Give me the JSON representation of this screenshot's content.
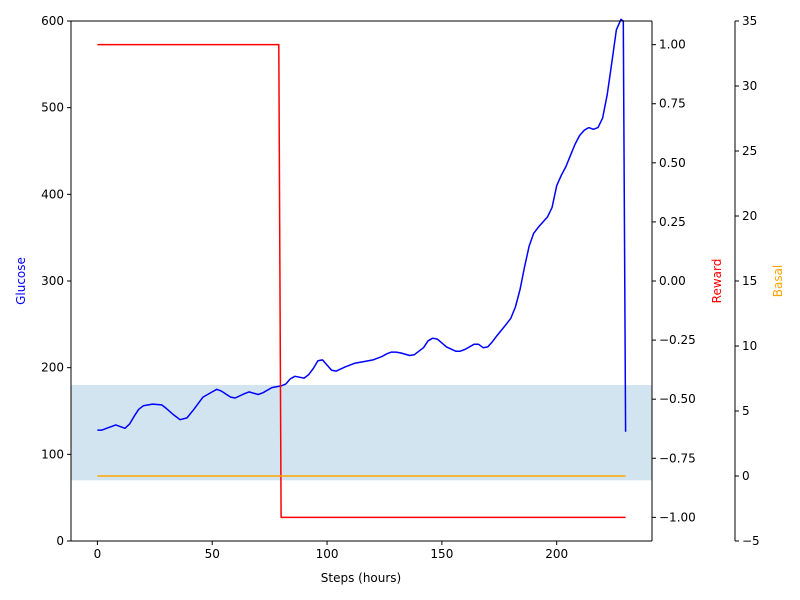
{
  "chart_data": {
    "type": "line",
    "xlabel": "Steps (hours)",
    "xlim": [
      -11.5,
      241.5
    ],
    "xticks": [
      0,
      50,
      100,
      150,
      200
    ],
    "axes": {
      "glucose": {
        "label": "Glucose",
        "color": "#0000ff",
        "ylim": [
          0,
          600
        ],
        "ticks": [
          0,
          100,
          200,
          300,
          400,
          500,
          600
        ]
      },
      "reward": {
        "label": "Reward",
        "color": "#ff0000",
        "ylim": [
          -1.1,
          1.1
        ],
        "ticks": [
          "-1.00",
          "-0.75",
          "-0.50",
          "-0.25",
          "0.00",
          "0.25",
          "0.50",
          "0.75",
          "1.00"
        ]
      },
      "basal": {
        "label": "Basal",
        "color": "#ffa500",
        "ylim": [
          -5,
          35
        ],
        "ticks": [
          -5,
          0,
          5,
          10,
          15,
          20,
          25,
          30,
          35
        ]
      }
    },
    "target_range": {
      "axis": "glucose",
      "low": 70,
      "high": 180,
      "color": "#1f77b4",
      "opacity": 0.2
    },
    "series": [
      {
        "axis": "glucose",
        "color": "#0000ff",
        "x": [
          0,
          2,
          4,
          8,
          12,
          14,
          16,
          18,
          20,
          24,
          28,
          30,
          33,
          36,
          39,
          42,
          46,
          48,
          50,
          52,
          54,
          58,
          60,
          64,
          66,
          70,
          72,
          76,
          80,
          82,
          84,
          86,
          90,
          92,
          94,
          96,
          98,
          100,
          102,
          104,
          108,
          112,
          116,
          120,
          124,
          126,
          128,
          130,
          132,
          136,
          138,
          142,
          144,
          146,
          148,
          152,
          156,
          158,
          160,
          164,
          166,
          168,
          170,
          172,
          174,
          178,
          180,
          182,
          184,
          186,
          188,
          190,
          192,
          196,
          198,
          200,
          202,
          204,
          206,
          208,
          210,
          212,
          214,
          216,
          218,
          220,
          222,
          224,
          226,
          228,
          229,
          230
        ],
        "values": [
          128,
          128,
          130,
          134,
          130,
          135,
          144,
          152,
          156,
          158,
          157,
          153,
          146,
          140,
          142,
          152,
          166,
          169,
          172,
          175,
          173,
          166,
          165,
          170,
          172,
          169,
          171,
          177,
          179,
          181,
          187,
          190,
          188,
          192,
          199,
          208,
          209,
          203,
          197,
          196,
          201,
          205,
          207,
          209,
          213,
          216,
          218,
          218,
          217,
          214,
          215,
          223,
          231,
          234,
          233,
          224,
          219,
          219,
          221,
          227,
          227,
          223,
          224,
          230,
          237,
          250,
          257,
          270,
          290,
          316,
          340,
          355,
          362,
          374,
          385,
          410,
          422,
          432,
          445,
          458,
          468,
          474,
          477,
          475,
          477,
          488,
          515,
          552,
          590,
          602,
          600,
          126
        ]
      },
      {
        "axis": "reward",
        "color": "#ff0000",
        "x": [
          0,
          79,
          80,
          230
        ],
        "values": [
          1.0,
          1.0,
          -1.0,
          -1.0
        ]
      },
      {
        "axis": "basal",
        "color": "#ffa500",
        "x": [
          0,
          230
        ],
        "values": [
          0,
          0
        ]
      }
    ]
  }
}
